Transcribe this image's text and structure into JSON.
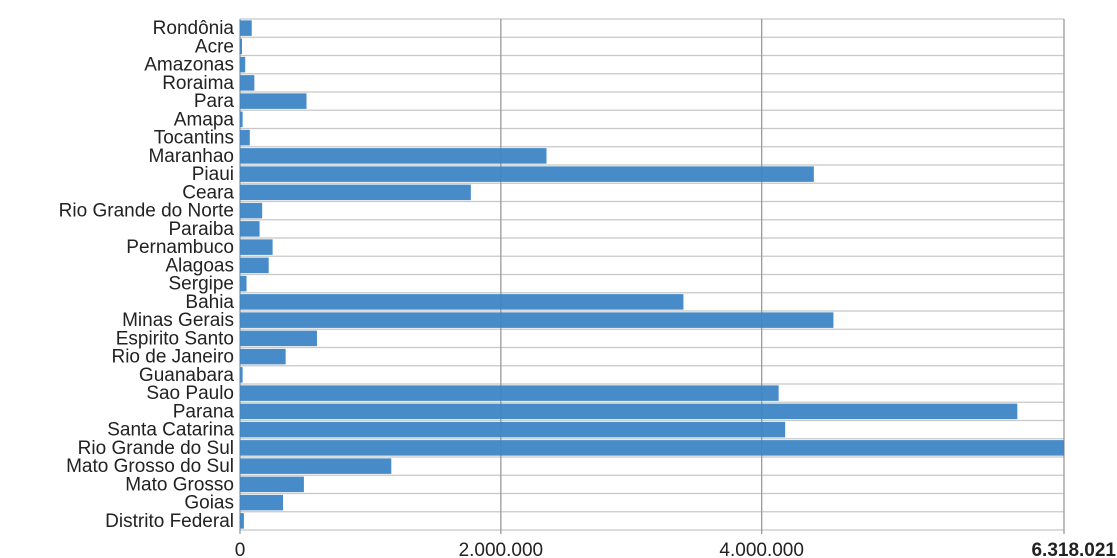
{
  "chart_data": {
    "type": "bar",
    "orientation": "horizontal",
    "categories": [
      "Rondônia",
      "Acre",
      "Amazonas",
      "Roraima",
      "Para",
      "Amapa",
      "Tocantins",
      "Maranhao",
      "Piaui",
      "Ceara",
      "Rio Grande do Norte",
      "Paraiba",
      "Pernambuco",
      "Alagoas",
      "Sergipe",
      "Bahia",
      "Minas Gerais",
      "Espirito Santo",
      "Rio de Janeiro",
      "Guanabara",
      "Sao Paulo",
      "Parana",
      "Santa Catarina",
      "Rio Grande do Sul",
      "Mato Grosso do Sul",
      "Mato Grosso",
      "Goias",
      "Distrito Federal"
    ],
    "values": [
      90000,
      10000,
      40000,
      110000,
      510000,
      20000,
      75000,
      2350000,
      4400000,
      1770000,
      170000,
      150000,
      250000,
      220000,
      50000,
      3400000,
      4550000,
      590000,
      350000,
      20000,
      4130000,
      5960000,
      4180000,
      6318021,
      1160000,
      490000,
      330000,
      30000
    ],
    "xlim": [
      0,
      6318021
    ],
    "x_ticks": [
      {
        "value": 0,
        "label": "0"
      },
      {
        "value": 2000000,
        "label": "2.000.000"
      },
      {
        "value": 4000000,
        "label": "4.000.000"
      },
      {
        "value": 6318021,
        "label": "6.318.021"
      }
    ],
    "grid": true,
    "bar_color": "#3d85c6",
    "grid_color": "#c8c8c8"
  }
}
